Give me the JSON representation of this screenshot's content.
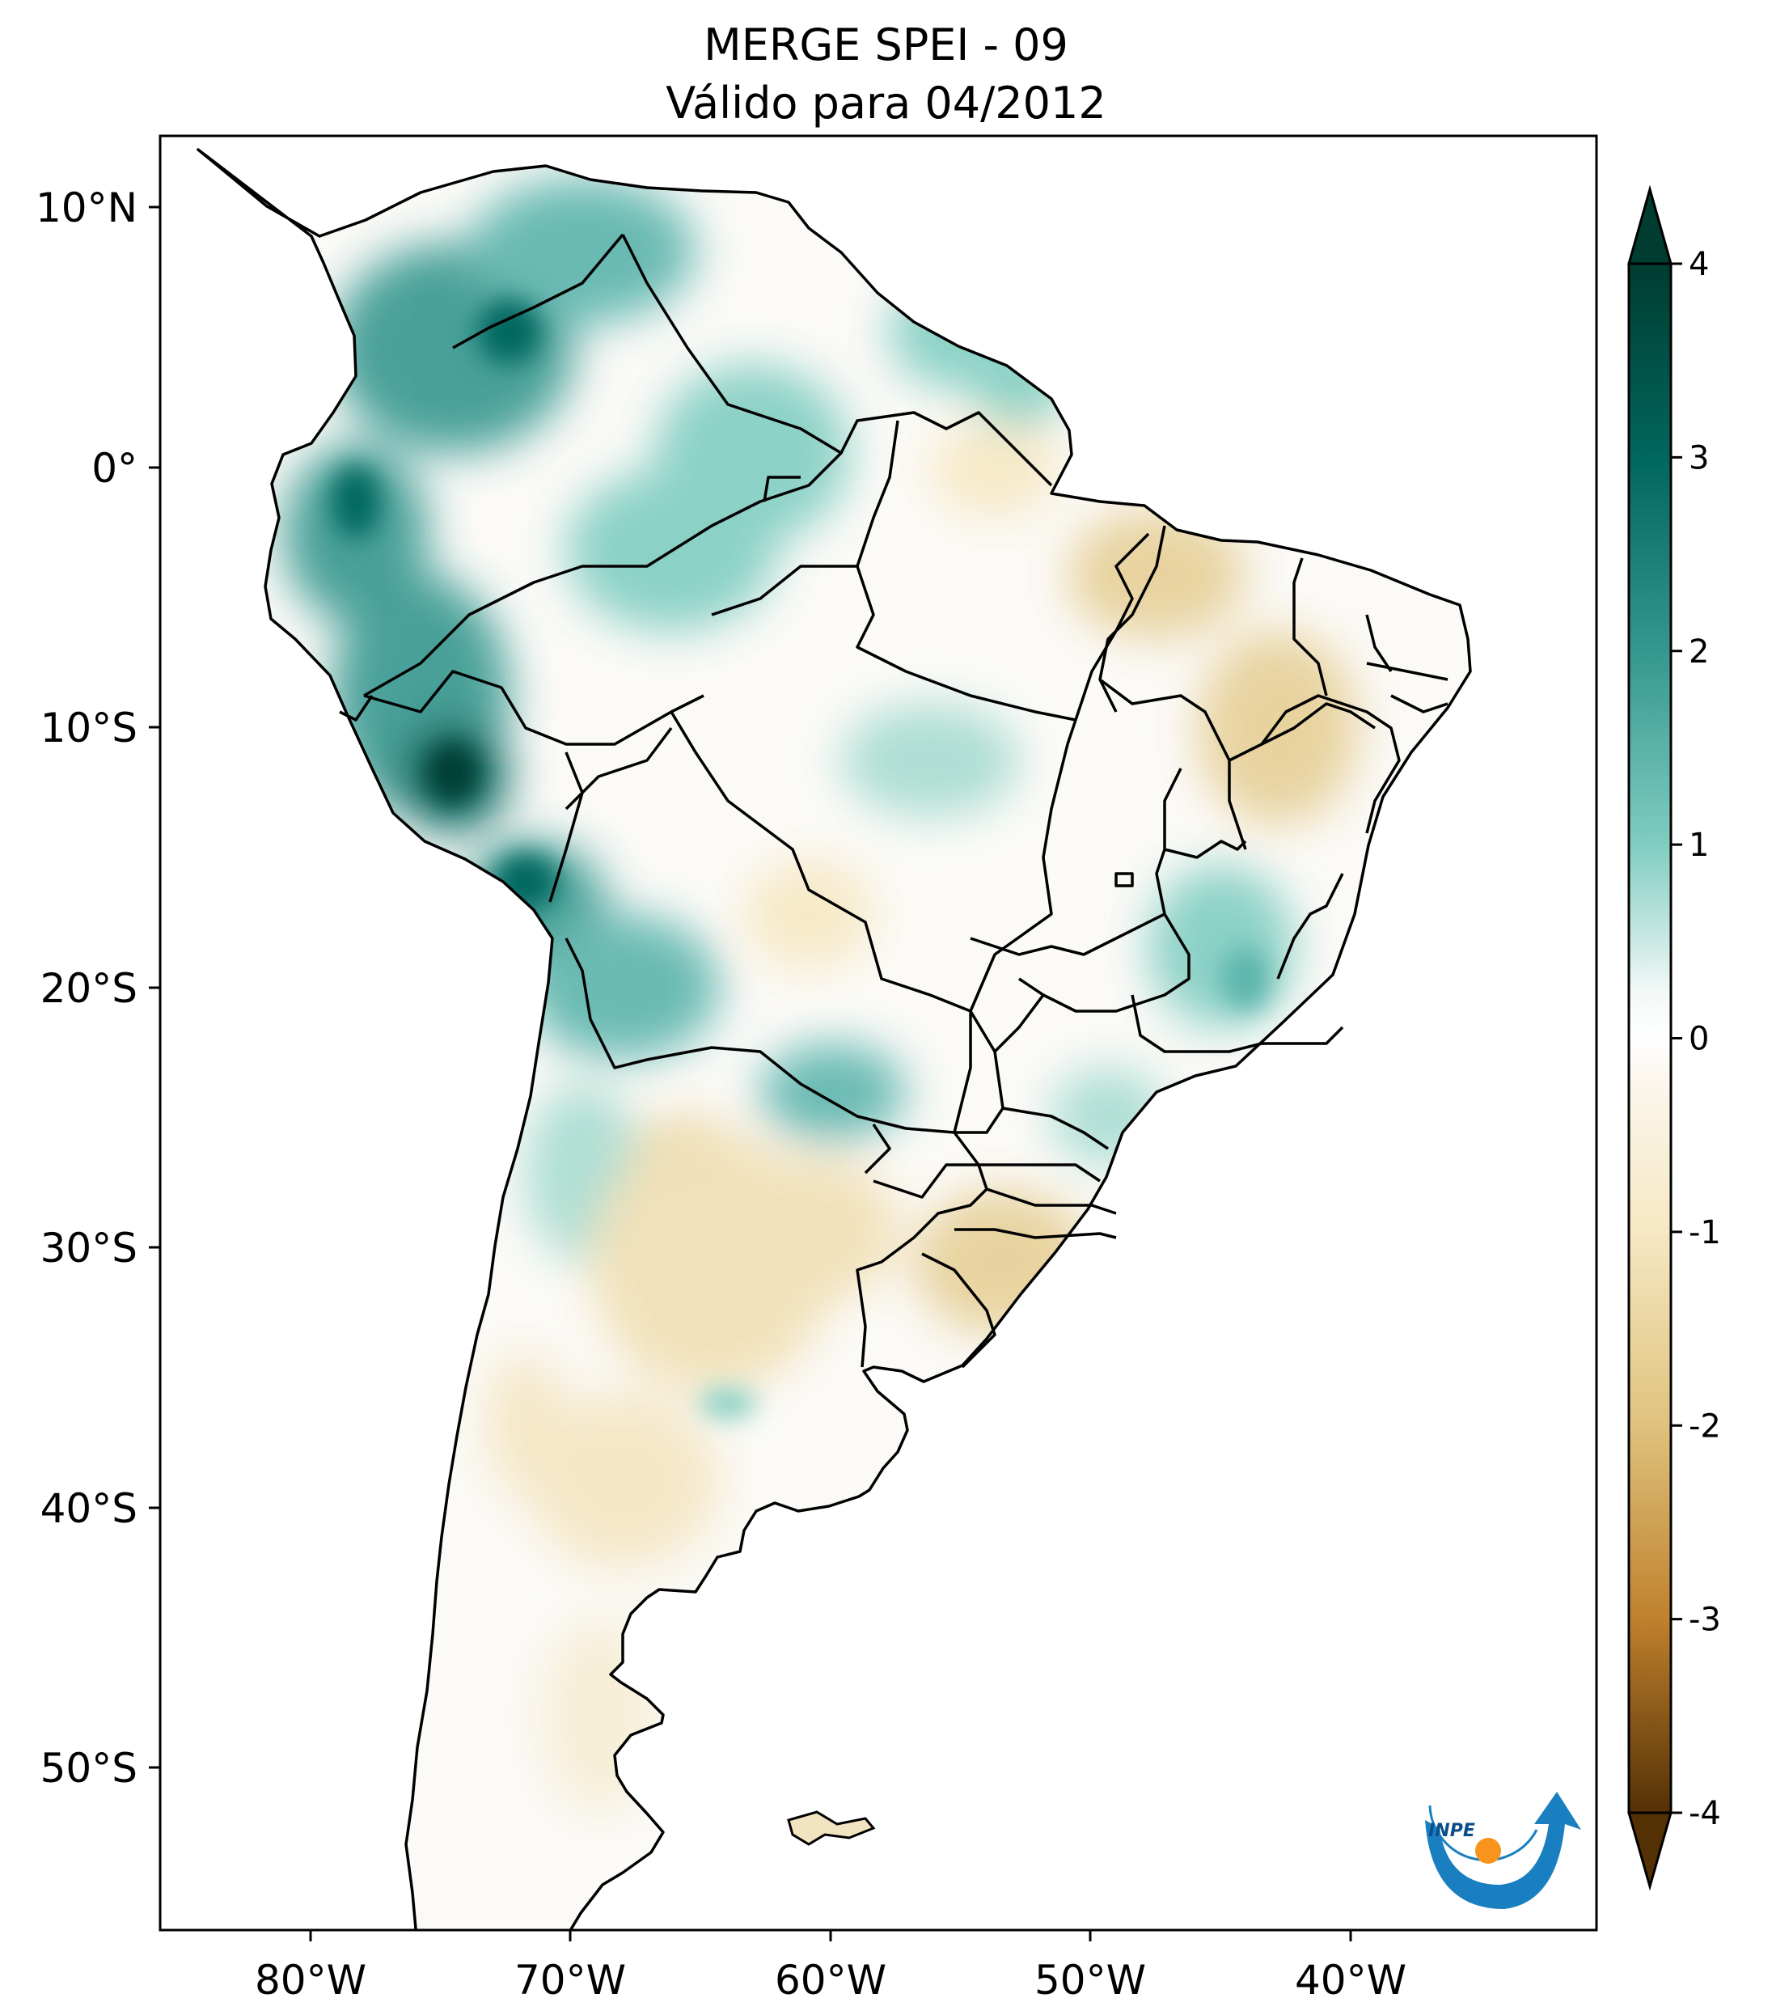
{
  "title": {
    "line1": "MERGE   SPEI - 09",
    "line2": "Válido para 04/2012"
  },
  "map": {
    "type": "choropleth-map",
    "region": "South America",
    "lon_range": [
      -85,
      -30
    ],
    "lat_range": [
      -56,
      13
    ],
    "lon_ticks": [
      {
        "value": -80,
        "label": "80°W"
      },
      {
        "value": -70,
        "label": "70°W"
      },
      {
        "value": -60,
        "label": "60°W"
      },
      {
        "value": -50,
        "label": "50°W"
      },
      {
        "value": -40,
        "label": "40°W"
      }
    ],
    "lat_ticks": [
      {
        "value": 10,
        "label": "10°N"
      },
      {
        "value": 0,
        "label": "0°"
      },
      {
        "value": -10,
        "label": "10°S"
      },
      {
        "value": -20,
        "label": "20°S"
      },
      {
        "value": -30,
        "label": "30°S"
      },
      {
        "value": -40,
        "label": "40°S"
      },
      {
        "value": -50,
        "label": "50°S"
      }
    ]
  },
  "colorbar": {
    "range": [
      -4,
      4
    ],
    "extend": "both",
    "ticks": [
      {
        "value": 4,
        "label": "4"
      },
      {
        "value": 3,
        "label": "3"
      },
      {
        "value": 2,
        "label": "2"
      },
      {
        "value": 1,
        "label": "1"
      },
      {
        "value": 0,
        "label": "0"
      },
      {
        "value": -1,
        "label": "-1"
      },
      {
        "value": -2,
        "label": "-2"
      },
      {
        "value": -3,
        "label": "-3"
      },
      {
        "value": -4,
        "label": "-4"
      }
    ],
    "colors": {
      "max_wet": "#003c30",
      "wet": "#01665e",
      "mid_wet": "#35978f",
      "light_wet": "#80cdc1",
      "neutral": "#ffffff",
      "light_dry": "#f6e8c3",
      "mid_dry": "#dfc27d",
      "dry": "#bf812d",
      "max_dry": "#543005"
    }
  },
  "logo": {
    "text": "INPE"
  }
}
